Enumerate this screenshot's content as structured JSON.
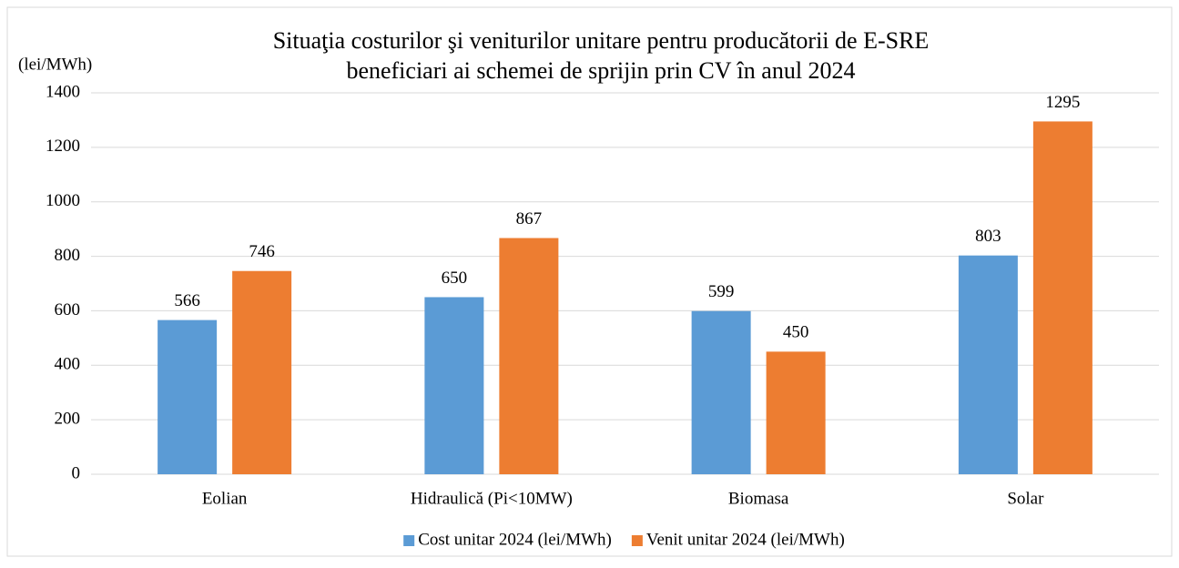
{
  "chart_data": {
    "type": "bar",
    "title": [
      "Situaţia costurilor şi veniturilor unitare pentru producătorii de E-SRE",
      "beneficiari ai schemei de sprijin prin CV în anul 2024"
    ],
    "y_label": "(lei/MWh)",
    "categories": [
      "Eolian",
      "Hidraulică (Pi<10MW)",
      "Biomasa",
      "Solar"
    ],
    "series": [
      {
        "name": "Cost unitar 2024 (lei/MWh)",
        "color": "#5b9bd5",
        "values": [
          566,
          650,
          599,
          803
        ]
      },
      {
        "name": "Venit unitar 2024 (lei/MWh)",
        "color": "#ed7d31",
        "values": [
          746,
          867,
          450,
          1295
        ]
      }
    ],
    "ylim": [
      0,
      1400
    ],
    "yticks": [
      0,
      200,
      400,
      600,
      800,
      1000,
      1200,
      1400
    ],
    "grid": true,
    "legend": "bottom"
  }
}
